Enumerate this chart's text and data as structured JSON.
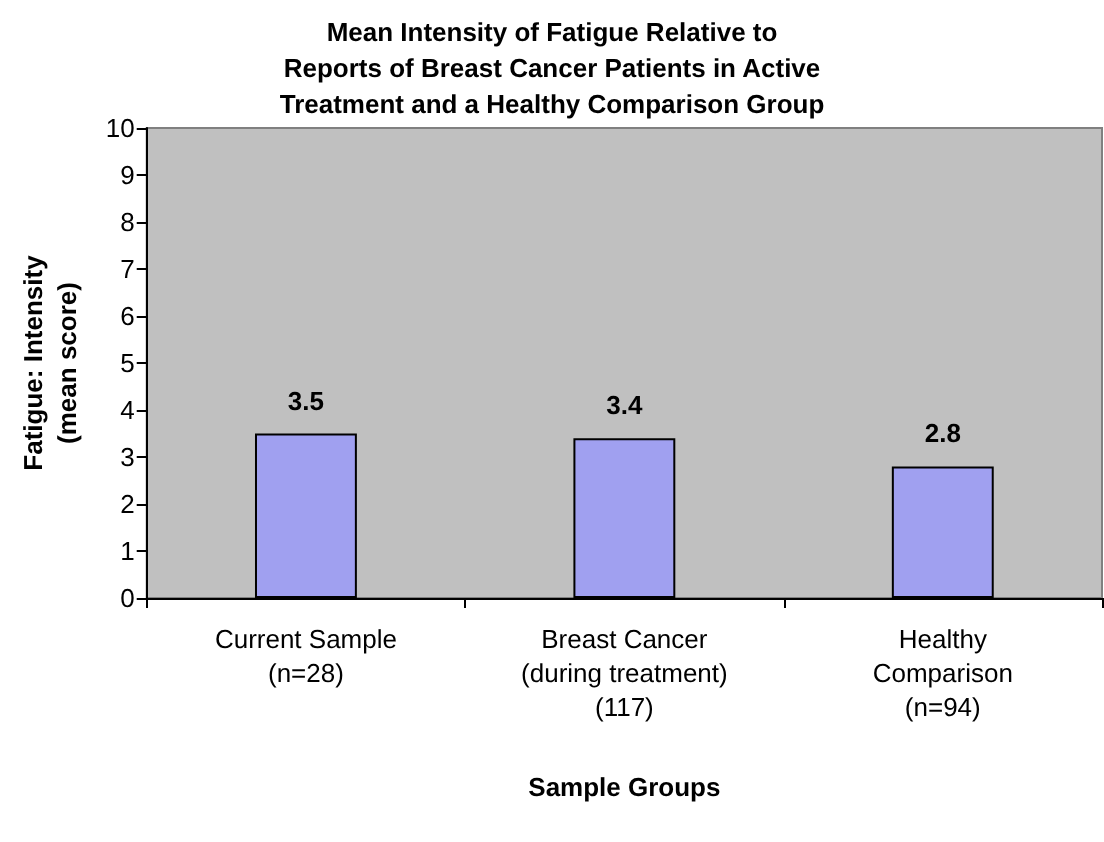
{
  "chart_data": {
    "type": "bar",
    "title": "Mean Intensity of Fatigue Relative to\nReports of Breast Cancer Patients in Active\nTreatment and a Healthy Comparison Group",
    "xlabel": "Sample Groups",
    "ylabel": "Fatigue: Intensity\n(mean score)",
    "categories": [
      "Current Sample\n(n=28)",
      "Breast Cancer\n(during treatment)\n(117)",
      "Healthy\nComparison\n(n=94)"
    ],
    "values": [
      3.5,
      3.4,
      2.8
    ],
    "color": "#a0a0f0",
    "ylim": [
      0,
      10
    ],
    "yticks": [
      0,
      1,
      2,
      3,
      4,
      5,
      6,
      7,
      8,
      9,
      10
    ],
    "grid": false,
    "data_labels": true
  }
}
